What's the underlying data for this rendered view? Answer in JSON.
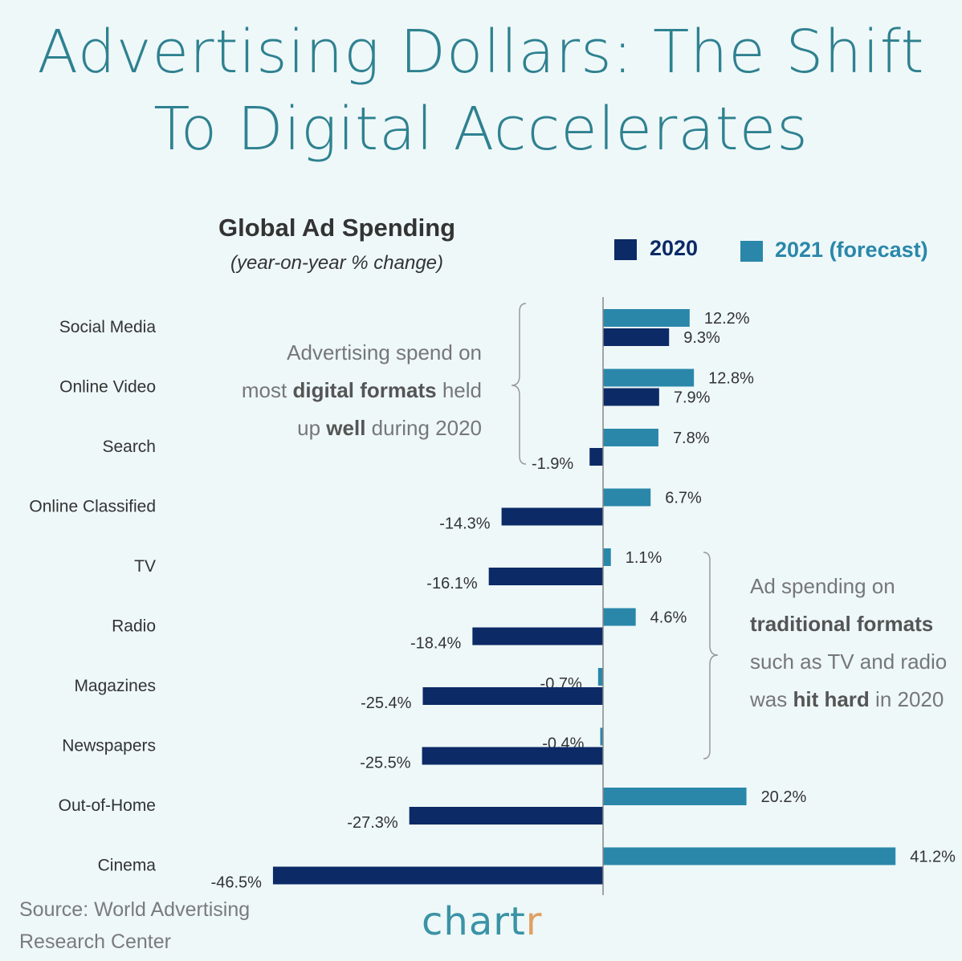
{
  "title_line1": "Advertising Dollars: The Shift",
  "title_line2": "To Digital Accelerates",
  "colors": {
    "background": "#eef8f9",
    "title": "#2f8190",
    "series_2020": "#0c2a66",
    "series_2021": "#2a87aa"
  },
  "annotations": [
    {
      "lines": [
        [
          {
            "t": "Advertising spend on",
            "b": false
          }
        ],
        [
          {
            "t": "most ",
            "b": false
          },
          {
            "t": "digital formats",
            "b": true
          },
          {
            "t": " held",
            "b": false
          }
        ],
        [
          {
            "t": "up ",
            "b": false
          },
          {
            "t": "well",
            "b": true
          },
          {
            "t": " during 2020",
            "b": false
          }
        ]
      ]
    },
    {
      "lines": [
        [
          {
            "t": "Ad spending on",
            "b": false
          }
        ],
        [
          {
            "t": "traditional formats",
            "b": true
          }
        ],
        [
          {
            "t": "such as TV and radio",
            "b": false
          }
        ],
        [
          {
            "t": "was ",
            "b": false
          },
          {
            "t": "hit hard",
            "b": true
          },
          {
            "t": " in 2020",
            "b": false
          }
        ]
      ]
    }
  ],
  "source": {
    "line1": "Source: World Advertising",
    "line2": "Research Center"
  },
  "logo": {
    "main": "chart",
    "accent": "r"
  },
  "chart_data": {
    "type": "bar",
    "orientation": "horizontal",
    "title": "Global Ad Spending",
    "subtitle": "(year-on-year % change)",
    "legend_position": "top-right",
    "grid": false,
    "xlim": [
      -46.5,
      41.2
    ],
    "categories": [
      "Social Media",
      "Online Video",
      "Search",
      "Online Classified",
      "TV",
      "Radio",
      "Magazines",
      "Newspapers",
      "Out-of-Home",
      "Cinema"
    ],
    "series": [
      {
        "name": "2020",
        "values": [
          9.3,
          7.9,
          -1.9,
          -14.3,
          -16.1,
          -18.4,
          -25.4,
          -25.5,
          -27.3,
          -46.5
        ]
      },
      {
        "name": "2021 (forecast)",
        "values": [
          12.2,
          12.8,
          7.8,
          6.7,
          1.1,
          4.6,
          -0.7,
          -0.4,
          20.2,
          41.2
        ]
      }
    ]
  }
}
